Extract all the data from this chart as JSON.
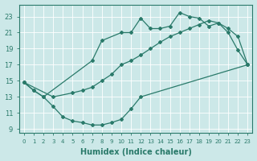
{
  "xlabel": "Humidex (Indice chaleur)",
  "bg_color": "#cce8e8",
  "line_color": "#2a7a6a",
  "xlim": [
    -0.5,
    23.5
  ],
  "ylim": [
    8.5,
    24.5
  ],
  "xticks": [
    0,
    1,
    2,
    3,
    4,
    5,
    6,
    7,
    8,
    9,
    10,
    11,
    12,
    13,
    14,
    15,
    16,
    17,
    18,
    19,
    20,
    21,
    22,
    23
  ],
  "yticks": [
    9,
    11,
    13,
    15,
    17,
    19,
    21,
    23
  ],
  "line_upper_x": [
    0,
    1,
    2,
    7,
    8,
    10,
    11,
    12,
    13,
    14,
    15,
    16,
    17,
    18,
    19,
    20,
    21,
    22,
    23
  ],
  "line_upper_y": [
    14.8,
    13.8,
    13.0,
    17.5,
    20.0,
    21.0,
    21.0,
    22.8,
    21.5,
    21.5,
    21.8,
    23.5,
    23.0,
    22.8,
    21.8,
    22.2,
    21.0,
    18.8,
    17.0
  ],
  "line_lower_x": [
    0,
    1,
    2,
    3,
    4,
    5,
    6,
    7,
    8,
    9,
    10,
    11,
    12,
    23
  ],
  "line_lower_y": [
    14.8,
    13.8,
    13.0,
    11.8,
    10.5,
    10.0,
    9.8,
    9.5,
    9.5,
    9.8,
    10.2,
    11.5,
    13.0,
    17.0
  ],
  "line_diag_x": [
    0,
    3,
    5,
    6,
    7,
    8,
    9,
    10,
    11,
    12,
    13,
    14,
    15,
    16,
    17,
    18,
    19,
    20,
    21,
    22,
    23
  ],
  "line_diag_y": [
    14.8,
    13.0,
    13.5,
    13.8,
    14.2,
    15.0,
    15.8,
    17.0,
    17.5,
    18.2,
    19.0,
    19.8,
    20.5,
    21.0,
    21.5,
    22.0,
    22.5,
    22.2,
    21.5,
    20.5,
    17.0
  ]
}
